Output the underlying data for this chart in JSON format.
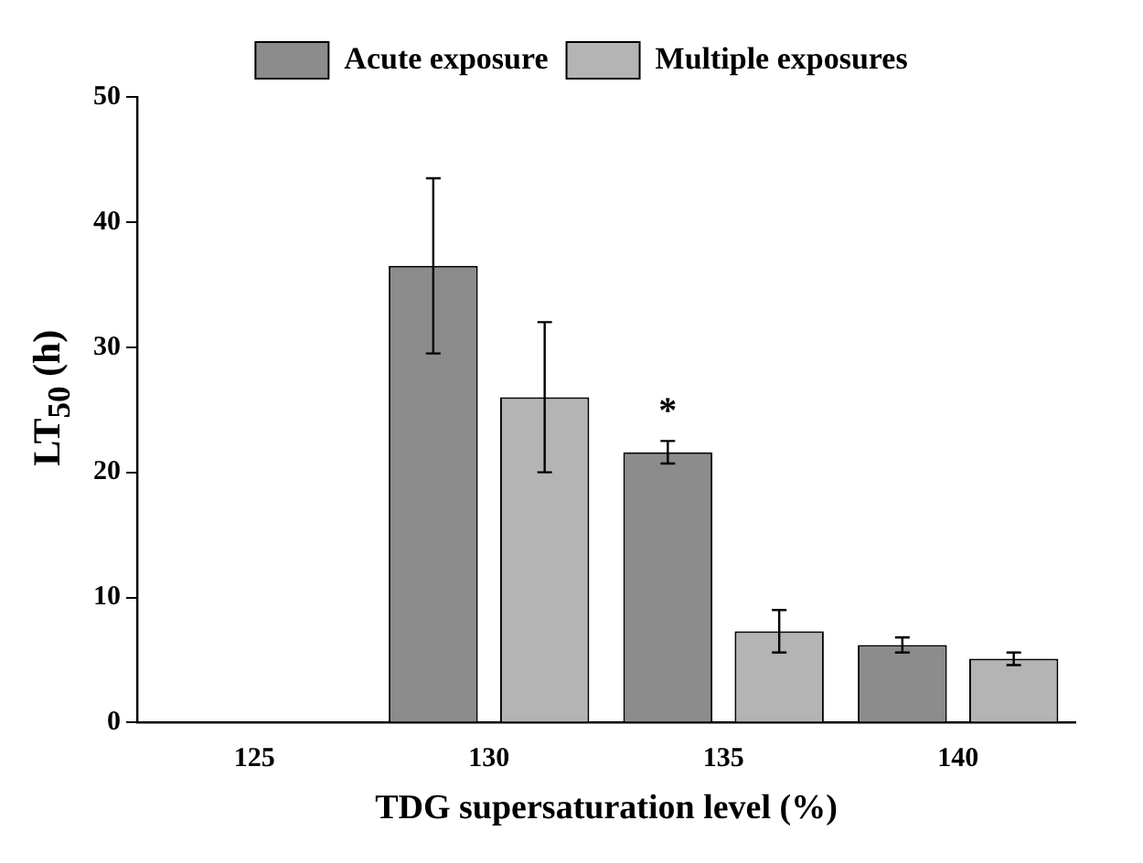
{
  "chart_data": {
    "type": "bar",
    "xlabel": "TDG supersaturation level (%)",
    "ylabel": "LT$_{50}$ (h)",
    "categories": [
      "125",
      "130",
      "135",
      "140"
    ],
    "series": [
      {
        "name": "Acute exposure",
        "color": "#8c8c8c",
        "values": [
          null,
          36.5,
          21.6,
          6.2
        ],
        "errors": [
          null,
          7,
          0.9,
          0.6
        ]
      },
      {
        "name": "Multiple exposures",
        "color": "#b4b4b4",
        "values": [
          null,
          26.0,
          7.3,
          5.1
        ],
        "errors": [
          null,
          6,
          1.7,
          0.5
        ]
      }
    ],
    "ylim": [
      0,
      50
    ],
    "yticks": [
      0,
      10,
      20,
      30,
      40,
      50
    ],
    "grid": false,
    "legend": "top",
    "annotations": [
      "*"
    ]
  }
}
